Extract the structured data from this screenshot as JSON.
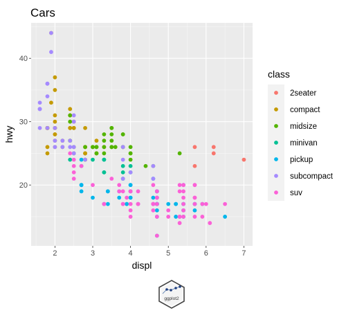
{
  "logo": {
    "text": "ggplot2"
  },
  "chart_data": {
    "type": "scatter",
    "title": "Cars",
    "xlabel": "displ",
    "ylabel": "hwy",
    "xlim": [
      1.37,
      7.23
    ],
    "ylim": [
      10.4,
      45.6
    ],
    "x_ticks": [
      2,
      3,
      4,
      5,
      6,
      7
    ],
    "y_ticks": [
      20,
      30,
      40
    ],
    "grid": true,
    "legend": {
      "title": "class",
      "position": "right"
    },
    "series": [
      {
        "name": "2seater",
        "color": "#F8766D",
        "points": [
          [
            5.7,
            26
          ],
          [
            5.7,
            23
          ],
          [
            6.2,
            26
          ],
          [
            6.2,
            25
          ],
          [
            7.0,
            24
          ]
        ]
      },
      {
        "name": "compact",
        "color": "#C49A00",
        "points": [
          [
            1.8,
            29
          ],
          [
            1.8,
            29
          ],
          [
            2.0,
            31
          ],
          [
            2.0,
            30
          ],
          [
            2.8,
            26
          ],
          [
            2.8,
            26
          ],
          [
            3.1,
            27
          ],
          [
            1.8,
            26
          ],
          [
            1.8,
            25
          ],
          [
            2.0,
            28
          ],
          [
            2.0,
            27
          ],
          [
            2.8,
            25
          ],
          [
            2.8,
            25
          ],
          [
            3.1,
            25
          ],
          [
            3.1,
            25
          ],
          [
            2.2,
            26
          ],
          [
            2.2,
            27
          ],
          [
            2.4,
            31
          ],
          [
            2.4,
            29
          ],
          [
            3.0,
            26
          ],
          [
            3.3,
            26
          ],
          [
            1.8,
            29
          ],
          [
            1.8,
            29
          ],
          [
            2.0,
            29
          ],
          [
            2.0,
            29
          ],
          [
            2.8,
            24
          ],
          [
            2.8,
            24
          ],
          [
            1.9,
            44
          ],
          [
            1.9,
            33
          ],
          [
            2.0,
            35
          ],
          [
            2.0,
            37
          ],
          [
            2.5,
            29
          ],
          [
            2.5,
            29
          ],
          [
            2.8,
            25
          ],
          [
            2.4,
            32
          ],
          [
            2.4,
            31
          ],
          [
            1.8,
            29
          ],
          [
            1.8,
            29
          ],
          [
            2.0,
            28
          ],
          [
            2.0,
            29
          ],
          [
            2.8,
            29
          ],
          [
            1.8,
            29
          ],
          [
            1.8,
            29
          ],
          [
            2.5,
            30
          ],
          [
            2.5,
            29
          ],
          [
            2.0,
            26
          ],
          [
            2.4,
            29
          ]
        ]
      },
      {
        "name": "midsize",
        "color": "#53B400",
        "points": [
          [
            2.8,
            26
          ],
          [
            3.1,
            25
          ],
          [
            3.1,
            26
          ],
          [
            2.4,
            27
          ],
          [
            2.4,
            30
          ],
          [
            3.1,
            26
          ],
          [
            3.5,
            29
          ],
          [
            3.6,
            26
          ],
          [
            2.4,
            31
          ],
          [
            3.0,
            26
          ],
          [
            3.5,
            26
          ],
          [
            3.3,
            27
          ],
          [
            3.3,
            28
          ],
          [
            3.3,
            26
          ],
          [
            3.3,
            25
          ],
          [
            3.8,
            28
          ],
          [
            3.8,
            26
          ],
          [
            3.8,
            26
          ],
          [
            3.8,
            28
          ],
          [
            4.0,
            25
          ],
          [
            4.0,
            26
          ],
          [
            4.4,
            23
          ],
          [
            4.6,
            23
          ],
          [
            5.3,
            25
          ],
          [
            2.4,
            27
          ],
          [
            2.5,
            26
          ],
          [
            2.5,
            25
          ],
          [
            3.5,
            26
          ],
          [
            3.5,
            27
          ],
          [
            3.0,
            26
          ],
          [
            3.5,
            29
          ],
          [
            3.5,
            28
          ],
          [
            4.0,
            24
          ],
          [
            4.0,
            25
          ]
        ]
      },
      {
        "name": "minivan",
        "color": "#00C094",
        "points": [
          [
            2.4,
            24
          ],
          [
            3.0,
            24
          ],
          [
            3.3,
            22
          ],
          [
            3.3,
            22
          ],
          [
            3.3,
            24
          ],
          [
            3.3,
            24
          ],
          [
            3.3,
            17
          ],
          [
            3.8,
            22
          ],
          [
            3.8,
            21
          ],
          [
            3.8,
            23
          ],
          [
            4.0,
            23
          ],
          [
            4.0,
            22
          ]
        ]
      },
      {
        "name": "pickup",
        "color": "#00B6EB",
        "points": [
          [
            3.7,
            19
          ],
          [
            3.7,
            18
          ],
          [
            3.9,
            17
          ],
          [
            3.9,
            17
          ],
          [
            4.7,
            19
          ],
          [
            4.7,
            19
          ],
          [
            5.2,
            17
          ],
          [
            5.2,
            17
          ],
          [
            5.7,
            17
          ],
          [
            5.9,
            17
          ],
          [
            4.7,
            12
          ],
          [
            4.7,
            17
          ],
          [
            4.7,
            15
          ],
          [
            5.2,
            15
          ],
          [
            5.7,
            16
          ],
          [
            2.7,
            20
          ],
          [
            2.7,
            19
          ],
          [
            2.7,
            20
          ],
          [
            3.4,
            17
          ],
          [
            3.4,
            19
          ],
          [
            4.0,
            20
          ],
          [
            4.7,
            17
          ],
          [
            4.7,
            16
          ],
          [
            4.7,
            17
          ],
          [
            5.7,
            17
          ],
          [
            2.7,
            20
          ],
          [
            3.4,
            19
          ],
          [
            4.0,
            18
          ],
          [
            4.0,
            20
          ],
          [
            4.2,
            17
          ],
          [
            4.7,
            18
          ],
          [
            5.0,
            17
          ],
          [
            6.5,
            15
          ],
          [
            5.4,
            16
          ],
          [
            5.4,
            17
          ],
          [
            4.6,
            21
          ],
          [
            4.6,
            17
          ],
          [
            5.4,
            15
          ],
          [
            5.4,
            17
          ],
          [
            2.7,
            23
          ],
          [
            2.7,
            24
          ],
          [
            4.0,
            18
          ],
          [
            4.0,
            19
          ],
          [
            4.0,
            19
          ],
          [
            4.7,
            17
          ],
          [
            4.7,
            17
          ],
          [
            3.0,
            18
          ],
          [
            4.6,
            18
          ]
        ]
      },
      {
        "name": "subcompact",
        "color": "#A58AFF",
        "points": [
          [
            1.6,
            33
          ],
          [
            1.6,
            32
          ],
          [
            1.6,
            32
          ],
          [
            1.6,
            29
          ],
          [
            1.6,
            32
          ],
          [
            1.8,
            34
          ],
          [
            1.8,
            36
          ],
          [
            1.8,
            36
          ],
          [
            2.0,
            29
          ],
          [
            2.4,
            26
          ],
          [
            2.4,
            27
          ],
          [
            2.5,
            30
          ],
          [
            2.5,
            31
          ],
          [
            2.5,
            26
          ],
          [
            2.2,
            26
          ],
          [
            2.2,
            27
          ],
          [
            3.8,
            26
          ],
          [
            3.8,
            24
          ],
          [
            4.6,
            21
          ],
          [
            5.4,
            20
          ],
          [
            5.4,
            20
          ],
          [
            3.8,
            21
          ],
          [
            4.0,
            22
          ],
          [
            4.6,
            23
          ],
          [
            2.0,
            27
          ],
          [
            2.5,
            25
          ],
          [
            1.9,
            44
          ],
          [
            1.9,
            41
          ],
          [
            1.8,
            29
          ],
          [
            2.0,
            26
          ],
          [
            2.8,
            24
          ]
        ]
      },
      {
        "name": "suv",
        "color": "#FB61D7",
        "points": [
          [
            3.3,
            17
          ],
          [
            3.8,
            17
          ],
          [
            3.8,
            19
          ],
          [
            3.8,
            17
          ],
          [
            5.3,
            15
          ],
          [
            5.3,
            15
          ],
          [
            5.3,
            15
          ],
          [
            5.7,
            20
          ],
          [
            6.5,
            17
          ],
          [
            3.7,
            20
          ],
          [
            4.0,
            17
          ],
          [
            4.0,
            19
          ],
          [
            4.7,
            15
          ],
          [
            4.7,
            17
          ],
          [
            5.7,
            18
          ],
          [
            5.9,
            17
          ],
          [
            4.2,
            17
          ],
          [
            4.6,
            17
          ],
          [
            4.6,
            16
          ],
          [
            4.6,
            17
          ],
          [
            5.0,
            15
          ],
          [
            5.4,
            15
          ],
          [
            5.4,
            19
          ],
          [
            5.4,
            17
          ],
          [
            5.3,
            14
          ],
          [
            5.7,
            15
          ],
          [
            6.0,
            17
          ],
          [
            5.3,
            20
          ],
          [
            5.3,
            19
          ],
          [
            5.7,
            18
          ],
          [
            6.1,
            14
          ],
          [
            4.0,
            15
          ],
          [
            4.0,
            19
          ],
          [
            4.7,
            19
          ],
          [
            4.7,
            12
          ],
          [
            4.7,
            18
          ],
          [
            5.7,
            20
          ],
          [
            2.5,
            23
          ],
          [
            2.5,
            21
          ],
          [
            4.7,
            18
          ],
          [
            5.7,
            17
          ],
          [
            2.7,
            23
          ],
          [
            2.4,
            25
          ],
          [
            4.0,
            16
          ],
          [
            4.6,
            17
          ],
          [
            4.2,
            19
          ],
          [
            4.6,
            20
          ],
          [
            5.4,
            16
          ],
          [
            5.4,
            20
          ],
          [
            3.0,
            20
          ],
          [
            3.5,
            21
          ],
          [
            4.0,
            17
          ],
          [
            5.0,
            16
          ],
          [
            5.4,
            18
          ],
          [
            5.9,
            15
          ],
          [
            2.5,
            24
          ],
          [
            3.7,
            19
          ],
          [
            3.9,
            18
          ],
          [
            2.5,
            22
          ],
          [
            4.2,
            17
          ],
          [
            4.6,
            17
          ],
          [
            3.3,
            17
          ]
        ]
      }
    ]
  }
}
